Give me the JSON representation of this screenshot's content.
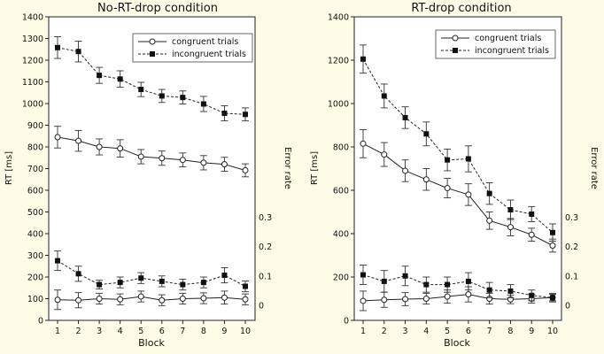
{
  "chart_data": [
    {
      "type": "line",
      "title": "No-RT-drop condition",
      "xlabel": "Block",
      "ylabel": "RT [ms]",
      "y2label": "Error rate",
      "x": [
        1,
        2,
        3,
        4,
        5,
        6,
        7,
        8,
        9,
        10
      ],
      "ylim": [
        0,
        1400
      ],
      "yticks": [
        0,
        100,
        200,
        300,
        400,
        500,
        600,
        700,
        800,
        900,
        1000,
        1100,
        1200,
        1300,
        1400
      ],
      "y2ticks": [
        {
          "label": "0",
          "rt": 70
        },
        {
          "label": "0.1",
          "rt": 205
        },
        {
          "label": "0.2",
          "rt": 340
        },
        {
          "label": "0.3",
          "rt": 475
        }
      ],
      "legend_position": "top-right",
      "series": [
        {
          "name": "congruent trials",
          "kind": "rt",
          "marker": "open-circle",
          "dash": false,
          "values": [
            845,
            828,
            800,
            793,
            755,
            748,
            740,
            727,
            720,
            692
          ],
          "errors": [
            50,
            48,
            37,
            40,
            33,
            33,
            32,
            33,
            32,
            30
          ]
        },
        {
          "name": "incongruent trials",
          "kind": "rt",
          "marker": "filled-square",
          "dash": true,
          "values": [
            1258,
            1240,
            1130,
            1113,
            1065,
            1035,
            1028,
            998,
            955,
            950
          ],
          "errors": [
            50,
            48,
            37,
            38,
            33,
            30,
            30,
            35,
            35,
            30
          ]
        },
        {
          "name": "congruent trials",
          "kind": "error",
          "marker": "open-circle",
          "dash": false,
          "values": [
            95,
            93,
            100,
            97,
            110,
            93,
            100,
            102,
            105,
            97
          ],
          "errors": [
            45,
            35,
            25,
            25,
            25,
            25,
            25,
            25,
            30,
            25
          ]
        },
        {
          "name": "incongruent trials",
          "kind": "error",
          "marker": "filled-square",
          "dash": true,
          "values": [
            275,
            215,
            165,
            175,
            195,
            180,
            165,
            175,
            208,
            157
          ],
          "errors": [
            45,
            35,
            20,
            25,
            25,
            25,
            25,
            25,
            35,
            25
          ]
        }
      ]
    },
    {
      "type": "line",
      "title": "RT-drop condition",
      "xlabel": "Block",
      "ylabel": "RT [ms]",
      "y2label": "Error rate",
      "x": [
        1,
        2,
        3,
        4,
        5,
        6,
        7,
        8,
        9,
        10
      ],
      "ylim": [
        0,
        1400
      ],
      "yticks": [
        0,
        200,
        400,
        600,
        800,
        1000,
        1200,
        1400
      ],
      "y2ticks": [
        {
          "label": "0",
          "rt": 70
        },
        {
          "label": "0.1",
          "rt": 205
        },
        {
          "label": "0.2",
          "rt": 340
        },
        {
          "label": "0.3",
          "rt": 475
        }
      ],
      "legend_position": "top-right",
      "series": [
        {
          "name": "congruent trials",
          "kind": "rt",
          "marker": "open-circle",
          "dash": false,
          "values": [
            815,
            765,
            690,
            650,
            610,
            580,
            460,
            430,
            395,
            345
          ],
          "errors": [
            65,
            55,
            50,
            50,
            45,
            50,
            40,
            40,
            30,
            30
          ]
        },
        {
          "name": "incongruent trials",
          "kind": "rt",
          "marker": "filled-square",
          "dash": true,
          "values": [
            1205,
            1035,
            935,
            860,
            740,
            745,
            585,
            510,
            490,
            405
          ],
          "errors": [
            65,
            55,
            50,
            55,
            50,
            60,
            50,
            45,
            35,
            40
          ]
        },
        {
          "name": "congruent trials",
          "kind": "error",
          "marker": "open-circle",
          "dash": false,
          "values": [
            90,
            95,
            98,
            100,
            110,
            120,
            100,
            97,
            100,
            105
          ],
          "errors": [
            45,
            35,
            30,
            25,
            30,
            35,
            25,
            20,
            20,
            15
          ]
        },
        {
          "name": "incongruent trials",
          "kind": "error",
          "marker": "filled-square",
          "dash": true,
          "values": [
            210,
            180,
            205,
            165,
            165,
            180,
            140,
            135,
            115,
            105
          ],
          "errors": [
            45,
            50,
            45,
            35,
            35,
            40,
            35,
            30,
            25,
            20
          ]
        }
      ]
    }
  ]
}
